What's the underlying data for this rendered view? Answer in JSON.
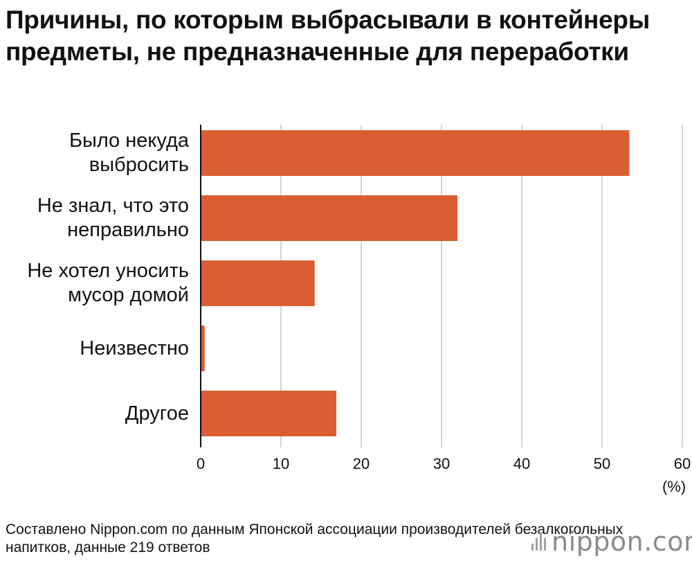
{
  "title": "Причины, по которым выбрасывали в контейнеры предметы, не предназначенные для переработки",
  "unit_label": "(%)",
  "source": "Составлено Nippon.com по данным Японской ассоциации производителей безалкогольных напитков, данные 219 ответов",
  "brand": "nippon.com",
  "colors": {
    "bar": "#d95f33",
    "grid": "#d3d3d3",
    "axis": "#111111"
  },
  "chart_data": {
    "type": "bar",
    "orientation": "horizontal",
    "title": "Причины, по которым выбрасывали в контейнеры предметы, не предназначенные для переработки",
    "xlabel": "(%)",
    "ylabel": "",
    "xlim": [
      0,
      60
    ],
    "xticks": [
      0,
      10,
      20,
      30,
      40,
      50,
      60
    ],
    "grid": true,
    "categories": [
      [
        "Было некуда",
        "выбросить"
      ],
      [
        "Не знал, что это",
        "неправильно"
      ],
      [
        "Не хотел уносить",
        "мусор домой"
      ],
      [
        "Неизвестно"
      ],
      [
        "Другое"
      ]
    ],
    "values": [
      53.4,
      32.0,
      14.2,
      0.5,
      16.9
    ]
  }
}
